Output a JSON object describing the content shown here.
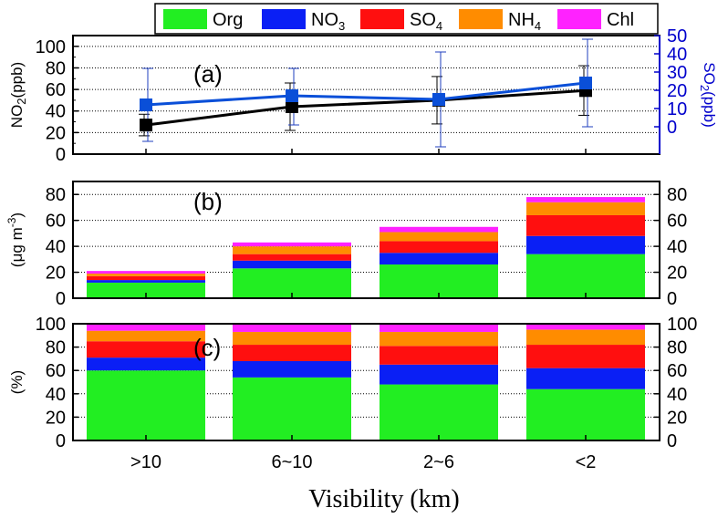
{
  "chart_data": [
    {
      "panel": "(a)",
      "type": "line",
      "categories": [
        ">10",
        "6~10",
        "2~6",
        "<2"
      ],
      "ylabel_left": "NO2(ppb)",
      "ylabel_right": "SO2(ppb)",
      "ylim_left": [
        0,
        110
      ],
      "ylim_right": [
        -15,
        50
      ],
      "yticks_left": [
        0,
        20,
        40,
        60,
        80,
        100
      ],
      "yticks_right": [
        0,
        10,
        20,
        30,
        40,
        50
      ],
      "series": [
        {
          "name": "NO2",
          "axis": "left",
          "color": "#000000",
          "values": [
            27,
            44,
            50,
            59
          ],
          "err_low": [
            17,
            22,
            28,
            36
          ],
          "err_high": [
            37,
            66,
            72,
            82
          ]
        },
        {
          "name": "SO2",
          "axis": "right",
          "color": "#0a4fd8",
          "values": [
            12,
            17,
            15,
            24
          ],
          "err_low": [
            -8,
            1,
            -11,
            0
          ],
          "err_high": [
            32,
            32,
            41,
            48
          ]
        }
      ]
    },
    {
      "panel": "(b)",
      "type": "bar",
      "stacked": true,
      "categories": [
        ">10",
        "6~10",
        "2~6",
        "<2"
      ],
      "ylabel": "(μg m-3)",
      "ylim": [
        0,
        90
      ],
      "yticks": [
        0,
        20,
        40,
        60,
        80
      ],
      "series": [
        {
          "name": "Org",
          "values": [
            12,
            23,
            26,
            34
          ]
        },
        {
          "name": "NO3",
          "values": [
            2,
            6,
            9,
            14
          ]
        },
        {
          "name": "SO4",
          "values": [
            3,
            5,
            9,
            16
          ]
        },
        {
          "name": "NH4",
          "values": [
            2,
            6,
            7,
            10
          ]
        },
        {
          "name": "Chl",
          "values": [
            2,
            3,
            4,
            4
          ]
        }
      ]
    },
    {
      "panel": "(c)",
      "type": "bar",
      "stacked": true,
      "categories": [
        ">10",
        "6~10",
        "2~6",
        "<2"
      ],
      "ylabel": "(%)",
      "ylim": [
        0,
        100
      ],
      "yticks": [
        0,
        20,
        40,
        60,
        80,
        100
      ],
      "series": [
        {
          "name": "Org",
          "values": [
            60,
            54,
            48,
            44
          ]
        },
        {
          "name": "NO3",
          "values": [
            11,
            14,
            17,
            18
          ]
        },
        {
          "name": "SO4",
          "values": [
            14,
            14,
            16,
            20
          ]
        },
        {
          "name": "NH4",
          "values": [
            9,
            11,
            12,
            13
          ]
        },
        {
          "name": "Chl",
          "values": [
            6,
            7,
            7,
            5
          ]
        }
      ]
    }
  ],
  "legend": [
    {
      "label": "Org",
      "color": "#22ee22"
    },
    {
      "label": "NO3",
      "color": "#0a1ff5"
    },
    {
      "label": "SO4",
      "color": "#ff0f0f"
    },
    {
      "label": "NH4",
      "color": "#ff8c00"
    },
    {
      "label": "Chl",
      "color": "#ff22ff"
    }
  ],
  "xlabel": "Visibility (km)"
}
